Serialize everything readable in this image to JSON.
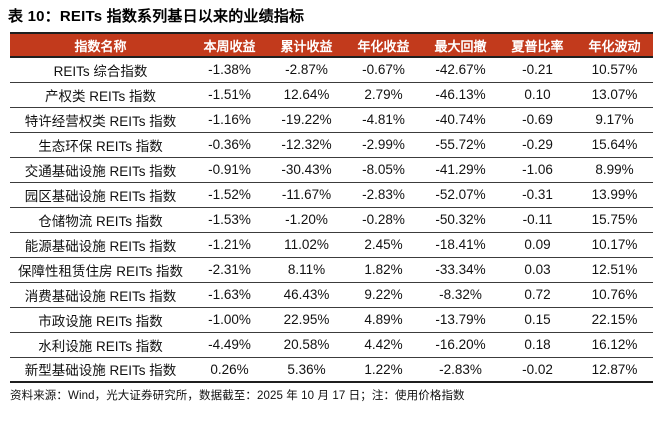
{
  "title": "表 10：REITs 指数系列基日以来的业绩指标",
  "footnote": "资料来源：Wind，光大证券研究所，数据截至：2025 年 10 月 17 日；注：使用价格指数",
  "colors": {
    "header_bg": "#C23A1C",
    "header_text": "#FFFFFF",
    "border_dark": "#1F1F1F",
    "row_line": "#3C3C3C"
  },
  "table": {
    "columns": [
      "指数名称",
      "本周收益",
      "累计收益",
      "年化收益",
      "最大回撤",
      "夏普比率",
      "年化波动"
    ],
    "rows": [
      [
        "REITs 综合指数",
        "-1.38%",
        "-2.87%",
        "-0.67%",
        "-42.67%",
        "-0.21",
        "10.57%"
      ],
      [
        "产权类 REITs 指数",
        "-1.51%",
        "12.64%",
        "2.79%",
        "-46.13%",
        "0.10",
        "13.07%"
      ],
      [
        "特许经营权类 REITs 指数",
        "-1.16%",
        "-19.22%",
        "-4.81%",
        "-40.74%",
        "-0.69",
        "9.17%"
      ],
      [
        "生态环保 REITs 指数",
        "-0.36%",
        "-12.32%",
        "-2.99%",
        "-55.72%",
        "-0.29",
        "15.64%"
      ],
      [
        "交通基础设施 REITs 指数",
        "-0.91%",
        "-30.43%",
        "-8.05%",
        "-41.29%",
        "-1.06",
        "8.99%"
      ],
      [
        "园区基础设施 REITs 指数",
        "-1.52%",
        "-11.67%",
        "-2.83%",
        "-52.07%",
        "-0.31",
        "13.99%"
      ],
      [
        "仓储物流 REITs 指数",
        "-1.53%",
        "-1.20%",
        "-0.28%",
        "-50.32%",
        "-0.11",
        "15.75%"
      ],
      [
        "能源基础设施 REITs 指数",
        "-1.21%",
        "11.02%",
        "2.45%",
        "-18.41%",
        "0.09",
        "10.17%"
      ],
      [
        "保障性租赁住房 REITs 指数",
        "-2.31%",
        "8.11%",
        "1.82%",
        "-33.34%",
        "0.03",
        "12.51%"
      ],
      [
        "消费基础设施 REITs 指数",
        "-1.63%",
        "46.43%",
        "9.22%",
        "-8.32%",
        "0.72",
        "10.76%"
      ],
      [
        "市政设施 REITs 指数",
        "-1.00%",
        "22.95%",
        "4.89%",
        "-13.79%",
        "0.15",
        "22.15%"
      ],
      [
        "水利设施 REITs 指数",
        "-4.49%",
        "20.58%",
        "4.42%",
        "-16.20%",
        "0.18",
        "16.12%"
      ],
      [
        "新型基础设施 REITs 指数",
        "0.26%",
        "5.36%",
        "1.22%",
        "-2.83%",
        "-0.02",
        "12.87%"
      ]
    ]
  },
  "chart_data": {
    "type": "table",
    "title": "表 10：REITs 指数系列基日以来的业绩指标",
    "columns": [
      "指数名称",
      "本周收益",
      "累计收益",
      "年化收益",
      "最大回撤",
      "夏普比率",
      "年化波动"
    ],
    "rows": [
      [
        "REITs 综合指数",
        "-1.38%",
        "-2.87%",
        "-0.67%",
        "-42.67%",
        "-0.21",
        "10.57%"
      ],
      [
        "产权类 REITs 指数",
        "-1.51%",
        "12.64%",
        "2.79%",
        "-46.13%",
        "0.10",
        "13.07%"
      ],
      [
        "特许经营权类 REITs 指数",
        "-1.16%",
        "-19.22%",
        "-4.81%",
        "-40.74%",
        "-0.69",
        "9.17%"
      ],
      [
        "生态环保 REITs 指数",
        "-0.36%",
        "-12.32%",
        "-2.99%",
        "-55.72%",
        "-0.29",
        "15.64%"
      ],
      [
        "交通基础设施 REITs 指数",
        "-0.91%",
        "-30.43%",
        "-8.05%",
        "-41.29%",
        "-1.06",
        "8.99%"
      ],
      [
        "园区基础设施 REITs 指数",
        "-1.52%",
        "-11.67%",
        "-2.83%",
        "-52.07%",
        "-0.31",
        "13.99%"
      ],
      [
        "仓储物流 REITs 指数",
        "-1.53%",
        "-1.20%",
        "-0.28%",
        "-50.32%",
        "-0.11",
        "15.75%"
      ],
      [
        "能源基础设施 REITs 指数",
        "-1.21%",
        "11.02%",
        "2.45%",
        "-18.41%",
        "0.09",
        "10.17%"
      ],
      [
        "保障性租赁住房 REITs 指数",
        "-2.31%",
        "8.11%",
        "1.82%",
        "-33.34%",
        "0.03",
        "12.51%"
      ],
      [
        "消费基础设施 REITs 指数",
        "-1.63%",
        "46.43%",
        "9.22%",
        "-8.32%",
        "0.72",
        "10.76%"
      ],
      [
        "市政设施 REITs 指数",
        "-1.00%",
        "22.95%",
        "4.89%",
        "-13.79%",
        "0.15",
        "22.15%"
      ],
      [
        "水利设施 REITs 指数",
        "-4.49%",
        "20.58%",
        "4.42%",
        "-16.20%",
        "0.18",
        "16.12%"
      ],
      [
        "新型基础设施 REITs 指数",
        "0.26%",
        "5.36%",
        "1.22%",
        "-2.83%",
        "-0.02",
        "12.87%"
      ]
    ]
  }
}
